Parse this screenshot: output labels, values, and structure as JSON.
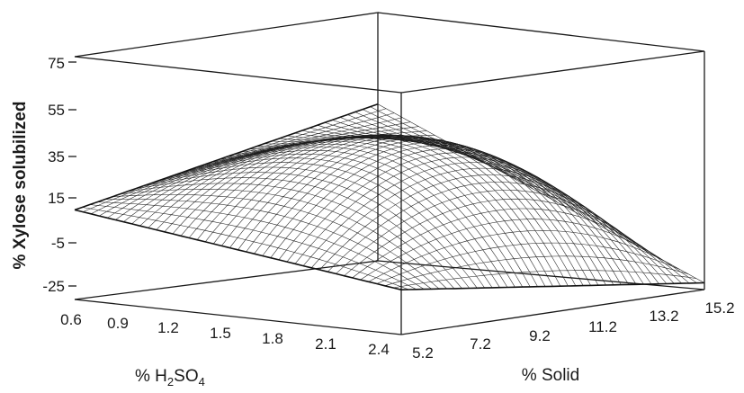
{
  "chart_data": {
    "type": "surface3d",
    "title": "",
    "zlabel": "% Xylose solubilized",
    "xlabel": {
      "prefix": "% H",
      "sub1": "2",
      "mid": "SO",
      "sub2": "4"
    },
    "ylabel": "% Solid",
    "x_ticks": [
      "0.6",
      "0.9",
      "1.2",
      "1.5",
      "1.8",
      "2.1",
      "2.4"
    ],
    "y_ticks": [
      "5.2",
      "7.2",
      "9.2",
      "11.2",
      "13.2",
      "15.2"
    ],
    "z_ticks": [
      "75",
      "55",
      "35",
      "15",
      "-5",
      "-25"
    ],
    "xlim": [
      0.6,
      2.4
    ],
    "ylim": [
      5.2,
      15.2
    ],
    "zlim": [
      -25,
      75
    ],
    "corner_values": [
      {
        "h2so4": 0.6,
        "solid": 5.2,
        "xylose": 15
      },
      {
        "h2so4": 2.4,
        "solid": 5.2,
        "xylose": -5
      },
      {
        "h2so4": 2.4,
        "solid": 15.2,
        "xylose": -22
      },
      {
        "h2so4": 0.6,
        "solid": 15.2,
        "xylose": 45
      }
    ],
    "max_value": 52,
    "grid": false
  }
}
